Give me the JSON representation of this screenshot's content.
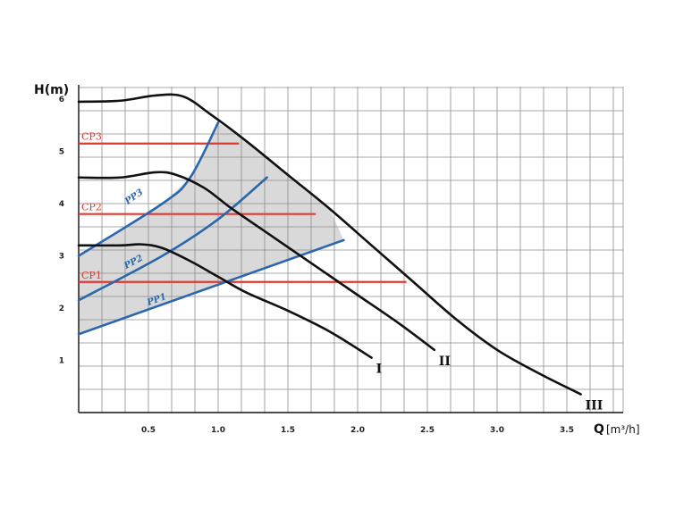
{
  "chart_data": {
    "type": "line",
    "title": "",
    "ylabel": "H(m)",
    "xlabel_main": "Q",
    "xlabel_unit": "[m³/h]",
    "xlim": [
      0,
      3.9
    ],
    "ylim": [
      0,
      6.5
    ],
    "grid": true,
    "x_ticks": [
      "0.5",
      "1.0",
      "1.5",
      "2.0",
      "2.5",
      "3.0",
      "3.5"
    ],
    "y_ticks": [
      "1",
      "2",
      "3",
      "4",
      "5",
      "6"
    ],
    "pump_curves": [
      {
        "name": "I",
        "points": [
          [
            0,
            3.2
          ],
          [
            0.3,
            3.2
          ],
          [
            0.45,
            3.22
          ],
          [
            0.6,
            3.15
          ],
          [
            0.8,
            2.9
          ],
          [
            1.0,
            2.6
          ],
          [
            1.2,
            2.3
          ],
          [
            1.5,
            1.95
          ],
          [
            1.8,
            1.55
          ],
          [
            2.1,
            1.05
          ]
        ]
      },
      {
        "name": "II",
        "points": [
          [
            0,
            4.5
          ],
          [
            0.3,
            4.5
          ],
          [
            0.55,
            4.6
          ],
          [
            0.7,
            4.55
          ],
          [
            0.9,
            4.3
          ],
          [
            1.1,
            3.9
          ],
          [
            1.4,
            3.35
          ],
          [
            1.7,
            2.8
          ],
          [
            2.0,
            2.25
          ],
          [
            2.3,
            1.7
          ],
          [
            2.55,
            1.2
          ]
        ]
      },
      {
        "name": "III",
        "points": [
          [
            0,
            5.95
          ],
          [
            0.3,
            5.97
          ],
          [
            0.55,
            6.07
          ],
          [
            0.75,
            6.05
          ],
          [
            0.95,
            5.7
          ],
          [
            1.2,
            5.2
          ],
          [
            1.5,
            4.55
          ],
          [
            1.8,
            3.9
          ],
          [
            2.1,
            3.2
          ],
          [
            2.4,
            2.5
          ],
          [
            2.7,
            1.8
          ],
          [
            3.0,
            1.2
          ],
          [
            3.3,
            0.75
          ],
          [
            3.6,
            0.35
          ]
        ]
      }
    ],
    "proportional_pressure": [
      {
        "name": "PP1",
        "points": [
          [
            0,
            1.5
          ],
          [
            1.9,
            3.3
          ]
        ]
      },
      {
        "name": "PP2",
        "points": [
          [
            0,
            2.15
          ],
          [
            0.6,
            3.0
          ],
          [
            1.0,
            3.7
          ],
          [
            1.35,
            4.5
          ]
        ]
      },
      {
        "name": "PP3",
        "points": [
          [
            0,
            3.0
          ],
          [
            0.6,
            4.0
          ],
          [
            0.8,
            4.5
          ],
          [
            1.0,
            5.55
          ]
        ]
      }
    ],
    "constant_pressure": [
      {
        "name": "CP1",
        "h": 2.5,
        "x_end": 2.35
      },
      {
        "name": "CP2",
        "h": 3.8,
        "x_end": 1.7
      },
      {
        "name": "CP3",
        "h": 5.15,
        "x_end": 1.15
      }
    ]
  }
}
